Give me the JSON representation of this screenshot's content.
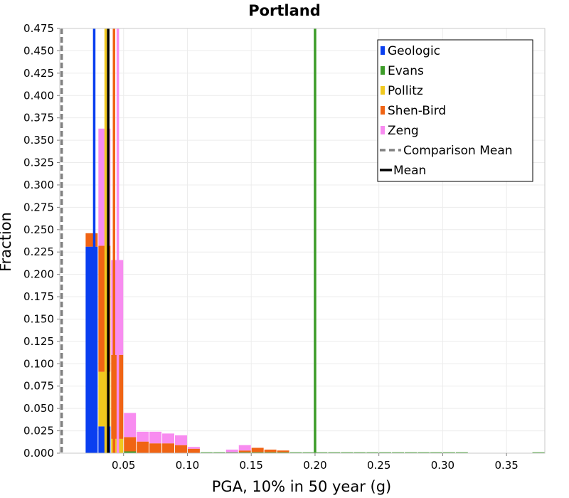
{
  "chart_data": {
    "type": "bar",
    "title": "Portland",
    "xlabel": "PGA, 10% in 50 year (g)",
    "ylabel": "Fraction",
    "xlim": [
      0.0,
      0.38
    ],
    "ylim": [
      0.0,
      0.475
    ],
    "x_ticks": [
      0.05,
      0.1,
      0.15,
      0.2,
      0.25,
      0.3,
      0.35
    ],
    "x_tick_labels": [
      "0.05",
      "0.10",
      "0.15",
      "0.20",
      "0.25",
      "0.30",
      "0.35"
    ],
    "y_ticks": [
      0.0,
      0.025,
      0.05,
      0.075,
      0.1,
      0.125,
      0.15,
      0.175,
      0.2,
      0.225,
      0.25,
      0.275,
      0.3,
      0.325,
      0.35,
      0.375,
      0.4,
      0.425,
      0.45,
      0.475
    ],
    "y_tick_labels": [
      "0.000",
      "0.025",
      "0.050",
      "0.075",
      "0.100",
      "0.125",
      "0.150",
      "0.175",
      "0.200",
      "0.225",
      "0.250",
      "0.275",
      "0.300",
      "0.325",
      "0.350",
      "0.375",
      "0.400",
      "0.425",
      "0.450",
      "0.475"
    ],
    "grid": true,
    "stacked": true,
    "legend_position": "top-right",
    "bin_width": 0.01,
    "bins": [
      0.02,
      0.03,
      0.04,
      0.05,
      0.06,
      0.07,
      0.08,
      0.09,
      0.1,
      0.11,
      0.12,
      0.13,
      0.14,
      0.15,
      0.16,
      0.17,
      0.18,
      0.19,
      0.2,
      0.21,
      0.22,
      0.23,
      0.24,
      0.25,
      0.26,
      0.27,
      0.28,
      0.29,
      0.3,
      0.31,
      0.32,
      0.33,
      0.34,
      0.35,
      0.36,
      0.37
    ],
    "series": [
      {
        "name": "Geologic",
        "color": "#0a3ff0",
        "values": [
          0.231,
          0.03,
          0,
          0,
          0,
          0,
          0,
          0,
          0,
          0,
          0,
          0,
          0,
          0,
          0,
          0,
          0,
          0,
          0,
          0,
          0,
          0,
          0,
          0,
          0,
          0,
          0,
          0,
          0,
          0,
          0,
          0,
          0,
          0,
          0,
          0
        ]
      },
      {
        "name": "Evans",
        "color": "#3c9c28",
        "values": [
          0,
          0,
          0,
          0.002,
          0,
          0,
          0,
          0,
          0,
          0.001,
          0.001,
          0.001,
          0.001,
          0.001,
          0.001,
          0.001,
          0.001,
          0.001,
          0.001,
          0.001,
          0.001,
          0.001,
          0.001,
          0.001,
          0.001,
          0.001,
          0.001,
          0.001,
          0.001,
          0.001,
          0,
          0,
          0,
          0,
          0,
          0.001
        ]
      },
      {
        "name": "Pollitz",
        "color": "#f0c81e",
        "values": [
          0,
          0.061,
          0.016,
          0,
          0,
          0,
          0,
          0,
          0,
          0,
          0,
          0,
          0,
          0,
          0,
          0,
          0,
          0,
          0,
          0,
          0,
          0,
          0,
          0,
          0,
          0,
          0,
          0,
          0,
          0,
          0,
          0,
          0,
          0,
          0,
          0
        ]
      },
      {
        "name": "Shen-Bird",
        "color": "#f06414",
        "values": [
          0.015,
          0.141,
          0.094,
          0.016,
          0.013,
          0.011,
          0.011,
          0.009,
          0.005,
          0,
          0,
          0,
          0.002,
          0.005,
          0.003,
          0.002,
          0,
          0,
          0,
          0,
          0,
          0,
          0,
          0,
          0,
          0,
          0,
          0,
          0,
          0,
          0,
          0,
          0,
          0,
          0,
          0
        ]
      },
      {
        "name": "Zeng",
        "color": "#f88cf0",
        "values": [
          0,
          0.131,
          0.106,
          0.027,
          0.011,
          0.013,
          0.011,
          0.011,
          0.002,
          0,
          0,
          0.003,
          0.006,
          0,
          0,
          0,
          0,
          0,
          0,
          0,
          0,
          0,
          0,
          0,
          0,
          0,
          0,
          0,
          0,
          0,
          0,
          0,
          0,
          0,
          0,
          0
        ]
      }
    ],
    "vertical_lines": [
      {
        "name": "Geologic",
        "x": 0.027,
        "color": "#0a3ff0",
        "style": "solid"
      },
      {
        "name": "Pollitz",
        "x": 0.036,
        "color": "#f0c81e",
        "style": "solid"
      },
      {
        "name": "Shen-Bird",
        "x": 0.0425,
        "color": "#f06414",
        "style": "solid"
      },
      {
        "name": "Zeng",
        "x": 0.0455,
        "color": "#f88cf0",
        "style": "solid"
      },
      {
        "name": "Evans",
        "x": 0.2,
        "color": "#3c9c28",
        "style": "solid"
      },
      {
        "name": "Mean",
        "x": 0.038,
        "color": "#000000",
        "style": "solid"
      },
      {
        "name": "Comparison Mean",
        "x": 0.0015,
        "color": "#808080",
        "style": "dashed"
      }
    ],
    "legend": [
      {
        "label": "Geologic",
        "color": "#0a3ff0",
        "kind": "box"
      },
      {
        "label": "Evans",
        "color": "#3c9c28",
        "kind": "box"
      },
      {
        "label": "Pollitz",
        "color": "#f0c81e",
        "kind": "box"
      },
      {
        "label": "Shen-Bird",
        "color": "#f06414",
        "kind": "box"
      },
      {
        "label": "Zeng",
        "color": "#f88cf0",
        "kind": "box"
      },
      {
        "label": "Comparison Mean",
        "color": "#808080",
        "kind": "dashed"
      },
      {
        "label": "Mean",
        "color": "#000000",
        "kind": "line"
      }
    ]
  }
}
